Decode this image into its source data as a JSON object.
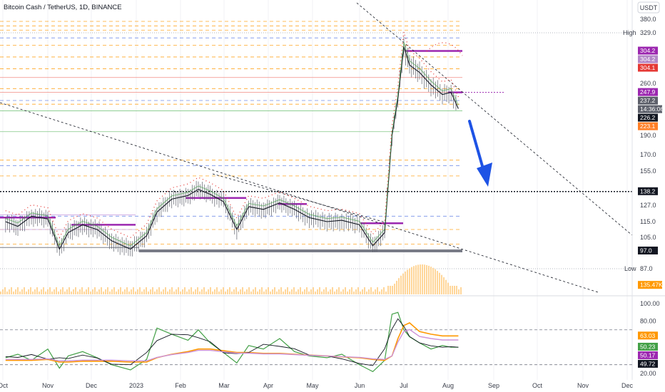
{
  "header": {
    "title": "Bitcoin Cash / TetherUS, 1D, BINANCE",
    "currency": "USDT"
  },
  "chart_data": {
    "type": "line",
    "title": "Bitcoin Cash / TetherUS, 1D, BINANCE",
    "price_panel": {
      "y_ticks": [
        380.0,
        329.0,
        260.0,
        190.0,
        170.0,
        155.0,
        127.0,
        115.0,
        105.0,
        87.0
      ],
      "high_label": "High",
      "low_label": "Low",
      "high_value": 329.0,
      "low_value": 87.0,
      "price_tags": [
        {
          "label": "304.2",
          "value": 304.2,
          "color": "#9c27b0"
        },
        {
          "label": "304.2",
          "value": 304.2,
          "color": "#b388c8"
        },
        {
          "label": "304.1",
          "value": 304.1,
          "color": "#e53935"
        },
        {
          "label": "247.9",
          "value": 247.9,
          "color": "#9c27b0"
        },
        {
          "label": "237.2",
          "value": 237.2,
          "color": "#5d606b"
        },
        {
          "label": "14:36:06",
          "value": 232.0,
          "color": "#5d606b"
        },
        {
          "label": "226.2",
          "value": 226.2,
          "color": "#131722"
        },
        {
          "label": "223.1",
          "value": 223.1,
          "color": "#ff7f27"
        },
        {
          "label": "138.2",
          "value": 138.2,
          "color": "#131722"
        },
        {
          "label": "97.0",
          "value": 97.0,
          "color": "#131722"
        },
        {
          "label": "135.47K",
          "value": 80.5,
          "color": "#ff9800"
        }
      ],
      "close_series": [
        {
          "date": "2022-10-01",
          "close": 115
        },
        {
          "date": "2022-10-10",
          "close": 112
        },
        {
          "date": "2022-10-20",
          "close": 119
        },
        {
          "date": "2022-11-01",
          "close": 117
        },
        {
          "date": "2022-11-09",
          "close": 98
        },
        {
          "date": "2022-11-15",
          "close": 108
        },
        {
          "date": "2022-11-25",
          "close": 113
        },
        {
          "date": "2022-12-05",
          "close": 110
        },
        {
          "date": "2022-12-15",
          "close": 103
        },
        {
          "date": "2022-12-28",
          "close": 98
        },
        {
          "date": "2023-01-08",
          "close": 106
        },
        {
          "date": "2023-01-15",
          "close": 122
        },
        {
          "date": "2023-01-25",
          "close": 132
        },
        {
          "date": "2023-02-05",
          "close": 135
        },
        {
          "date": "2023-02-12",
          "close": 140
        },
        {
          "date": "2023-02-20",
          "close": 136
        },
        {
          "date": "2023-03-01",
          "close": 130
        },
        {
          "date": "2023-03-10",
          "close": 110
        },
        {
          "date": "2023-03-18",
          "close": 126
        },
        {
          "date": "2023-03-28",
          "close": 124
        },
        {
          "date": "2023-04-08",
          "close": 129
        },
        {
          "date": "2023-04-18",
          "close": 124
        },
        {
          "date": "2023-04-28",
          "close": 118
        },
        {
          "date": "2023-05-10",
          "close": 115
        },
        {
          "date": "2023-05-20",
          "close": 116
        },
        {
          "date": "2023-06-01",
          "close": 113
        },
        {
          "date": "2023-06-10",
          "close": 100
        },
        {
          "date": "2023-06-18",
          "close": 108
        },
        {
          "date": "2023-06-23",
          "close": 190
        },
        {
          "date": "2023-06-27",
          "close": 240
        },
        {
          "date": "2023-07-01",
          "close": 310
        },
        {
          "date": "2023-07-05",
          "close": 285
        },
        {
          "date": "2023-07-12",
          "close": 275
        },
        {
          "date": "2023-07-20",
          "close": 258
        },
        {
          "date": "2023-07-28",
          "close": 245
        },
        {
          "date": "2023-08-03",
          "close": 248
        },
        {
          "date": "2023-08-08",
          "close": 226
        }
      ],
      "support_levels": [
        329.0,
        304.2,
        247.9,
        226.2,
        190.0,
        138.2,
        97.0
      ],
      "annotation": "down-arrow"
    },
    "oscillator_panel": {
      "y_ticks": [
        100.0,
        80.0,
        20.0
      ],
      "ylim": [
        15,
        105
      ],
      "value_tags": [
        {
          "label": "63.03",
          "value": 63.03,
          "color": "#ff9800"
        },
        {
          "label": "50.23",
          "value": 50.23,
          "color": "#43a047"
        },
        {
          "label": "50.17",
          "value": 50.17,
          "color": "#9c27b0"
        },
        {
          "label": "49.72",
          "value": 49.72,
          "color": "#131722"
        }
      ],
      "series": [
        {
          "values": [
            38,
            42,
            35,
            48,
            26,
            40,
            45,
            38,
            30,
            24,
            36,
            72,
            65,
            58,
            70,
            55,
            44,
            32,
            52,
            48,
            60,
            45,
            40,
            38,
            42,
            30,
            22,
            35,
            88,
            90,
            70,
            62,
            55,
            48,
            52,
            50,
            50
          ]
        },
        {
          "values": [
            35,
            35,
            35,
            36,
            33,
            33,
            34,
            34,
            34,
            33,
            33,
            38,
            42,
            45,
            48,
            48,
            46,
            44,
            44,
            43,
            43,
            42,
            41,
            40,
            39,
            38,
            36,
            35,
            40,
            60,
            75,
            78,
            68,
            65,
            63,
            63,
            63
          ]
        }
      ]
    },
    "x_ticks": [
      "Oct",
      "Nov",
      "Dec",
      "2023",
      "Feb",
      "Mar",
      "Apr",
      "May",
      "Jun",
      "Jul",
      "Aug",
      "Sep",
      "Oct",
      "Nov",
      "Dec"
    ],
    "x_range": [
      "2022-09-29",
      "2023-12-31"
    ]
  }
}
